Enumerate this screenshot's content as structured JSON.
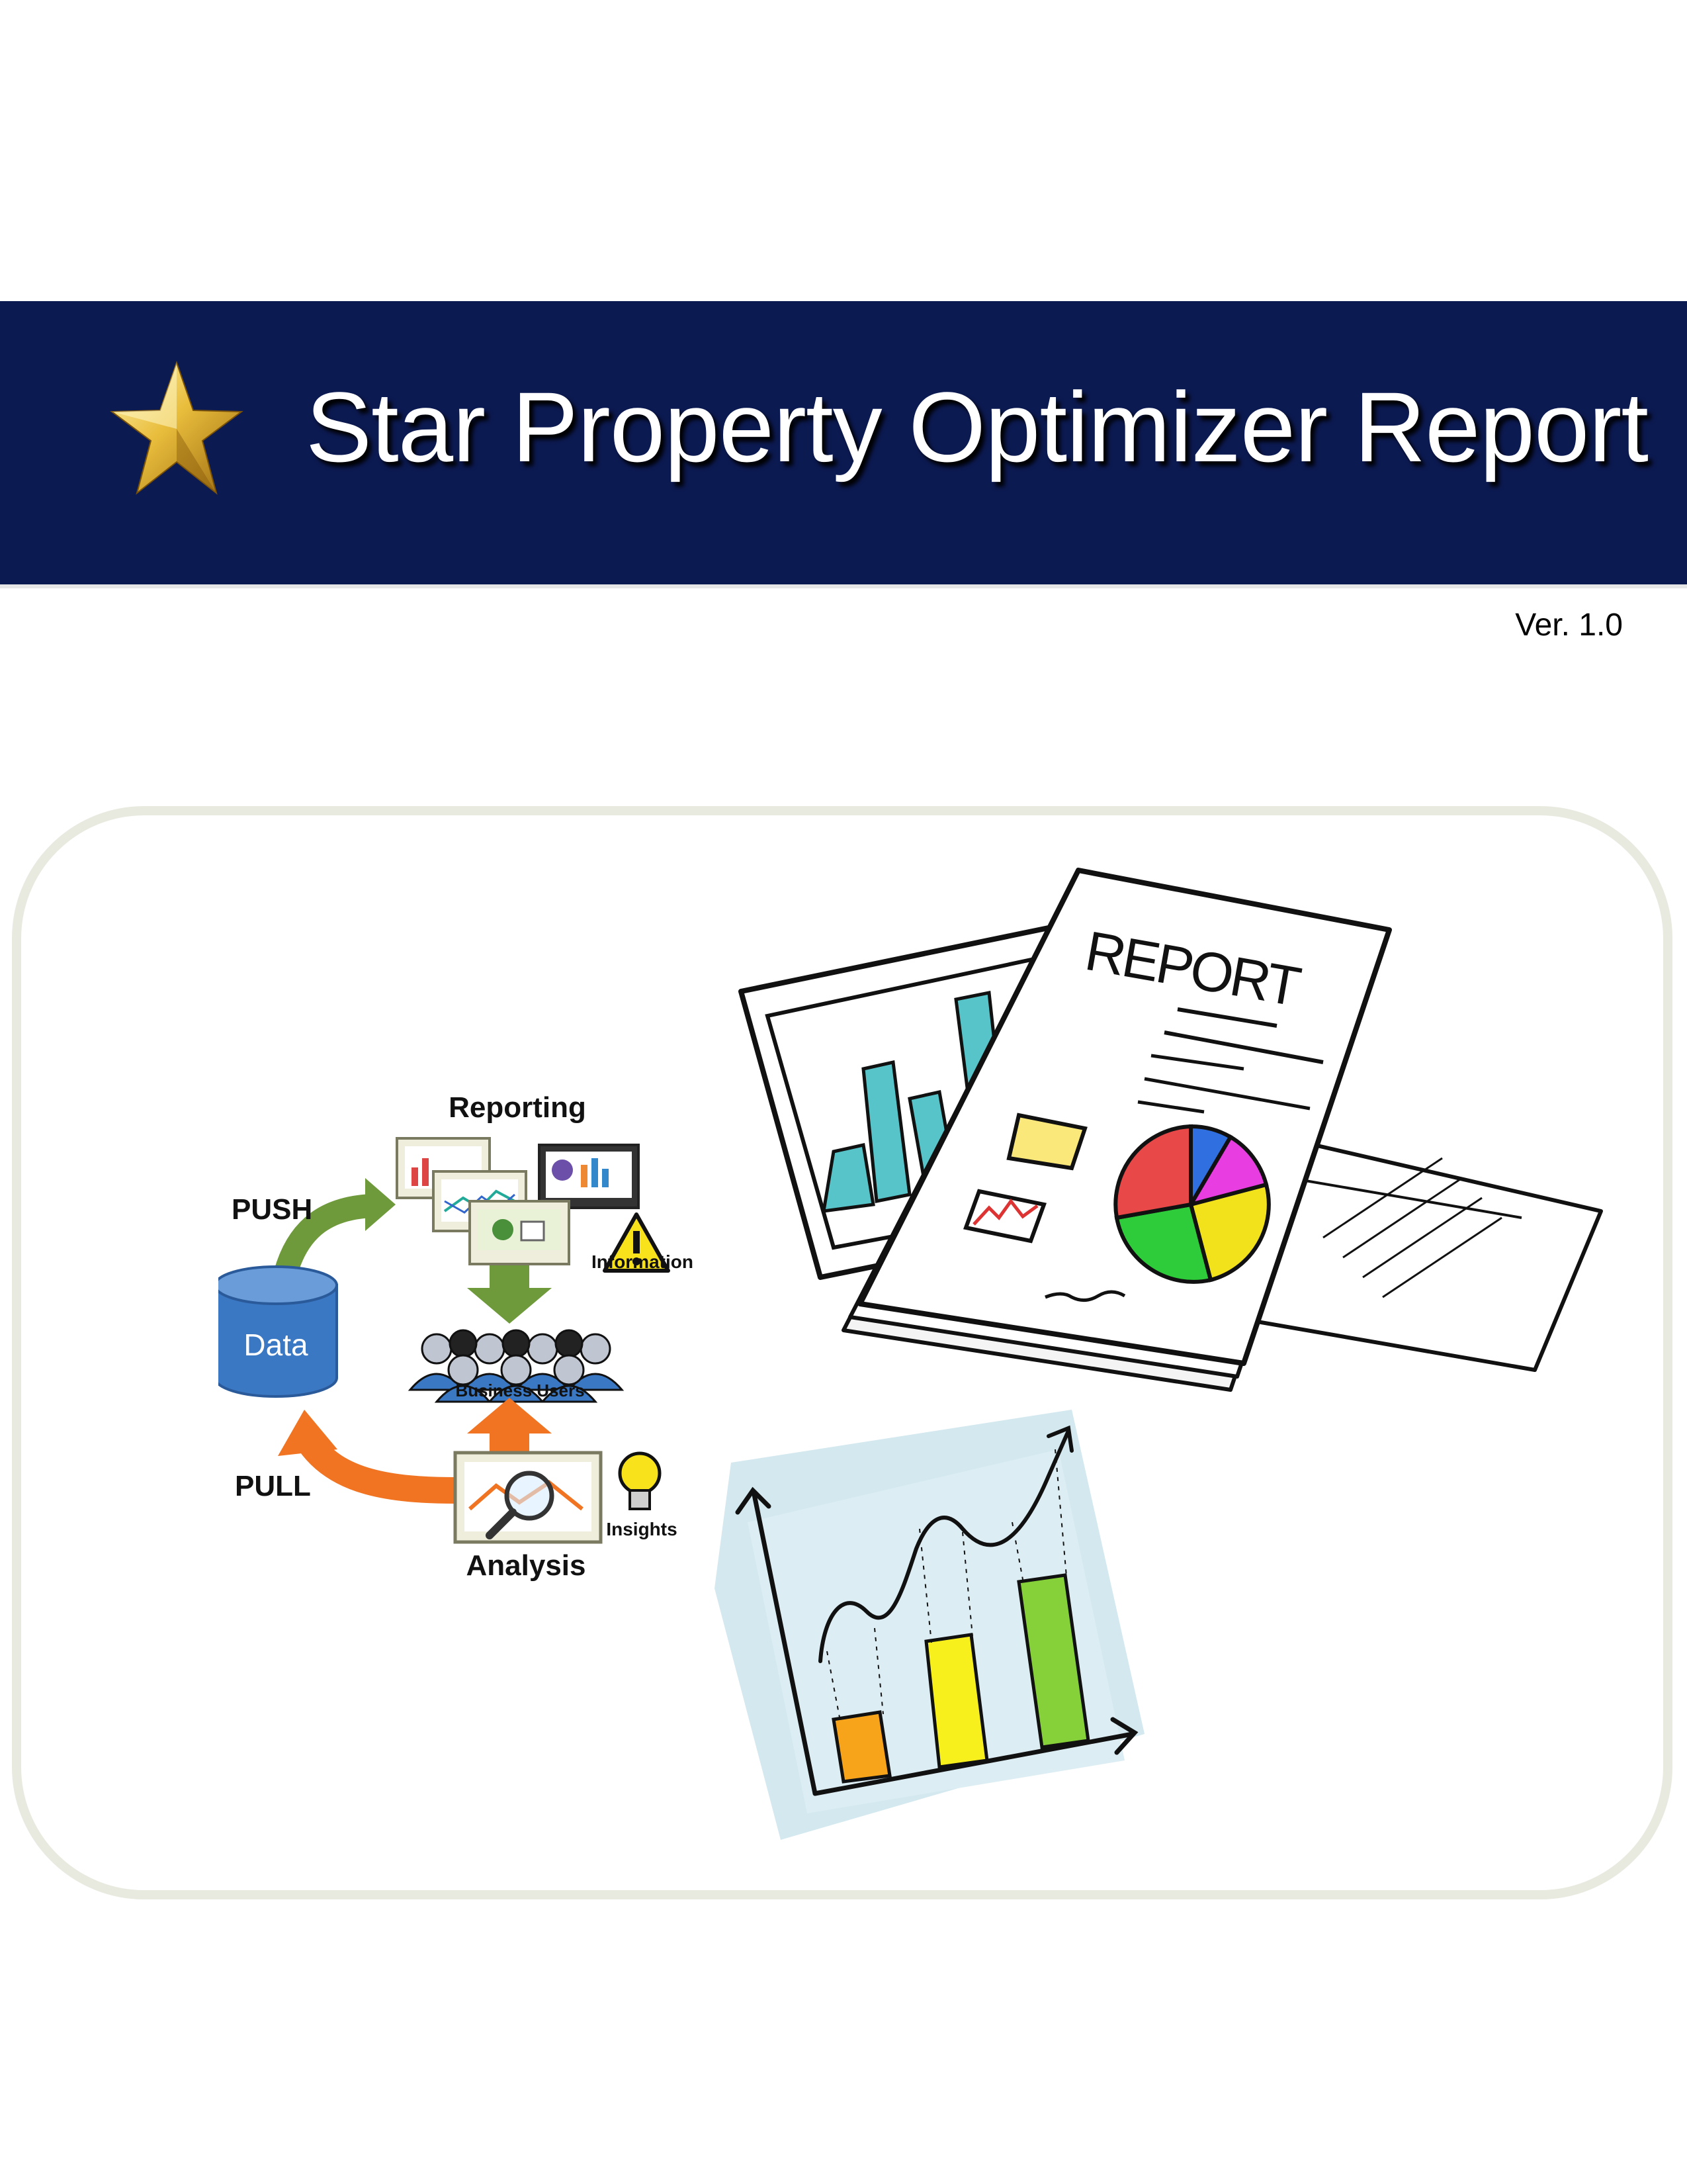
{
  "header": {
    "title": "Star Property Optimizer Report",
    "version": "Ver. 1.0",
    "banner_color": "#0c1a52"
  },
  "cycle_diagram": {
    "reporting": "Reporting",
    "push": "PUSH",
    "pull": "PULL",
    "data": "Data",
    "information": "Information",
    "business_users": "Business Users",
    "analysis": "Analysis",
    "insights": "Insights",
    "push_arrow_color": "#6f9a3c",
    "pull_arrow_color": "#f07422"
  },
  "report_art": {
    "stamp": "REPORT"
  },
  "icons": [
    "star-icon",
    "database-icon",
    "warning-icon",
    "lightbulb-icon",
    "magnifier-icon"
  ]
}
